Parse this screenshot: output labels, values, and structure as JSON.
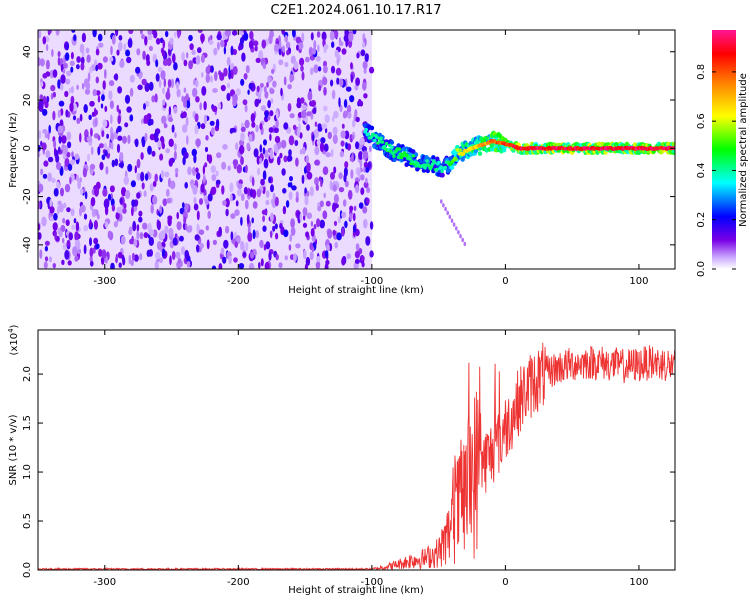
{
  "title": "C2E1.2024.061.10.17.R17",
  "chart_data": [
    {
      "type": "heatmap",
      "xlabel": "Height of straight line (km)",
      "ylabel": "Frequency (Hz)",
      "xlim": [
        -350,
        127
      ],
      "ylim": [
        -50,
        49
      ],
      "x_ticks": [
        -300,
        -200,
        -100,
        0,
        100
      ],
      "y_ticks": [
        -40,
        -20,
        0,
        20,
        40
      ],
      "noise_region": {
        "x_range": [
          -350,
          -100
        ],
        "f_range": [
          -50,
          49
        ],
        "mean_amplitude": 0.12
      },
      "signal_ridge": {
        "x": [
          -105,
          -95,
          -85,
          -75,
          -65,
          -55,
          -45,
          -38,
          -30,
          -20,
          -10,
          -2,
          5,
          10,
          30,
          60,
          90,
          127
        ],
        "frequency": [
          7,
          3,
          -1,
          -3,
          -6,
          -7,
          -8,
          -3,
          -1,
          1,
          3,
          2,
          1,
          0,
          0,
          0,
          0,
          0
        ],
        "amplitude": [
          0.4,
          0.45,
          0.45,
          0.5,
          0.45,
          0.45,
          0.4,
          0.6,
          0.7,
          0.75,
          0.85,
          0.9,
          0.95,
          0.97,
          0.97,
          0.97,
          0.97,
          0.97
        ]
      },
      "colorbar": {
        "label": "Normalized spectral amplitude",
        "ticks": [
          "0.0",
          "0.2",
          "0.4",
          "0.6",
          "0.8"
        ],
        "range": [
          0,
          0.97
        ],
        "colors": [
          "#ffffff",
          "#c9a6ff",
          "#7a00e6",
          "#0000ff",
          "#00ffff",
          "#00ff00",
          "#ffff00",
          "#ff8000",
          "#ff0000",
          "#ff1493"
        ]
      }
    },
    {
      "type": "line",
      "xlabel": "Height of straight line (km)",
      "ylabel": "SNR (10 * v/v)",
      "y_scale_note": "(x10",
      "y_scale_exp": "4",
      "y_scale_close": ")",
      "xlim": [
        -350,
        127
      ],
      "ylim": [
        0,
        2.45
      ],
      "x_ticks": [
        -300,
        -200,
        -100,
        0,
        100
      ],
      "y_ticks": [
        "0.0",
        "0.5",
        "1.0",
        "1.5",
        "2.0"
      ],
      "y_tick_values": [
        0,
        0.5,
        1.0,
        1.5,
        2.0
      ],
      "series": [
        {
          "color": "#ee3333",
          "x": [
            -350,
            -100,
            -90,
            -80,
            -70,
            -60,
            -50,
            -45,
            -40,
            -35,
            -30,
            -25,
            -20,
            -15,
            -10,
            -5,
            0,
            5,
            10,
            15,
            20,
            25,
            30,
            40,
            50,
            60,
            70,
            80,
            90,
            100,
            110,
            120,
            127
          ],
          "y": [
            0.01,
            0.01,
            0.03,
            0.06,
            0.1,
            0.12,
            0.18,
            0.3,
            0.45,
            0.65,
            0.8,
            0.95,
            1.05,
            1.12,
            1.2,
            1.3,
            1.45,
            1.58,
            1.72,
            1.82,
            1.9,
            1.96,
            2.0,
            2.07,
            2.1,
            2.12,
            2.12,
            2.1,
            2.08,
            2.1,
            2.12,
            2.1,
            2.08
          ]
        }
      ]
    }
  ]
}
